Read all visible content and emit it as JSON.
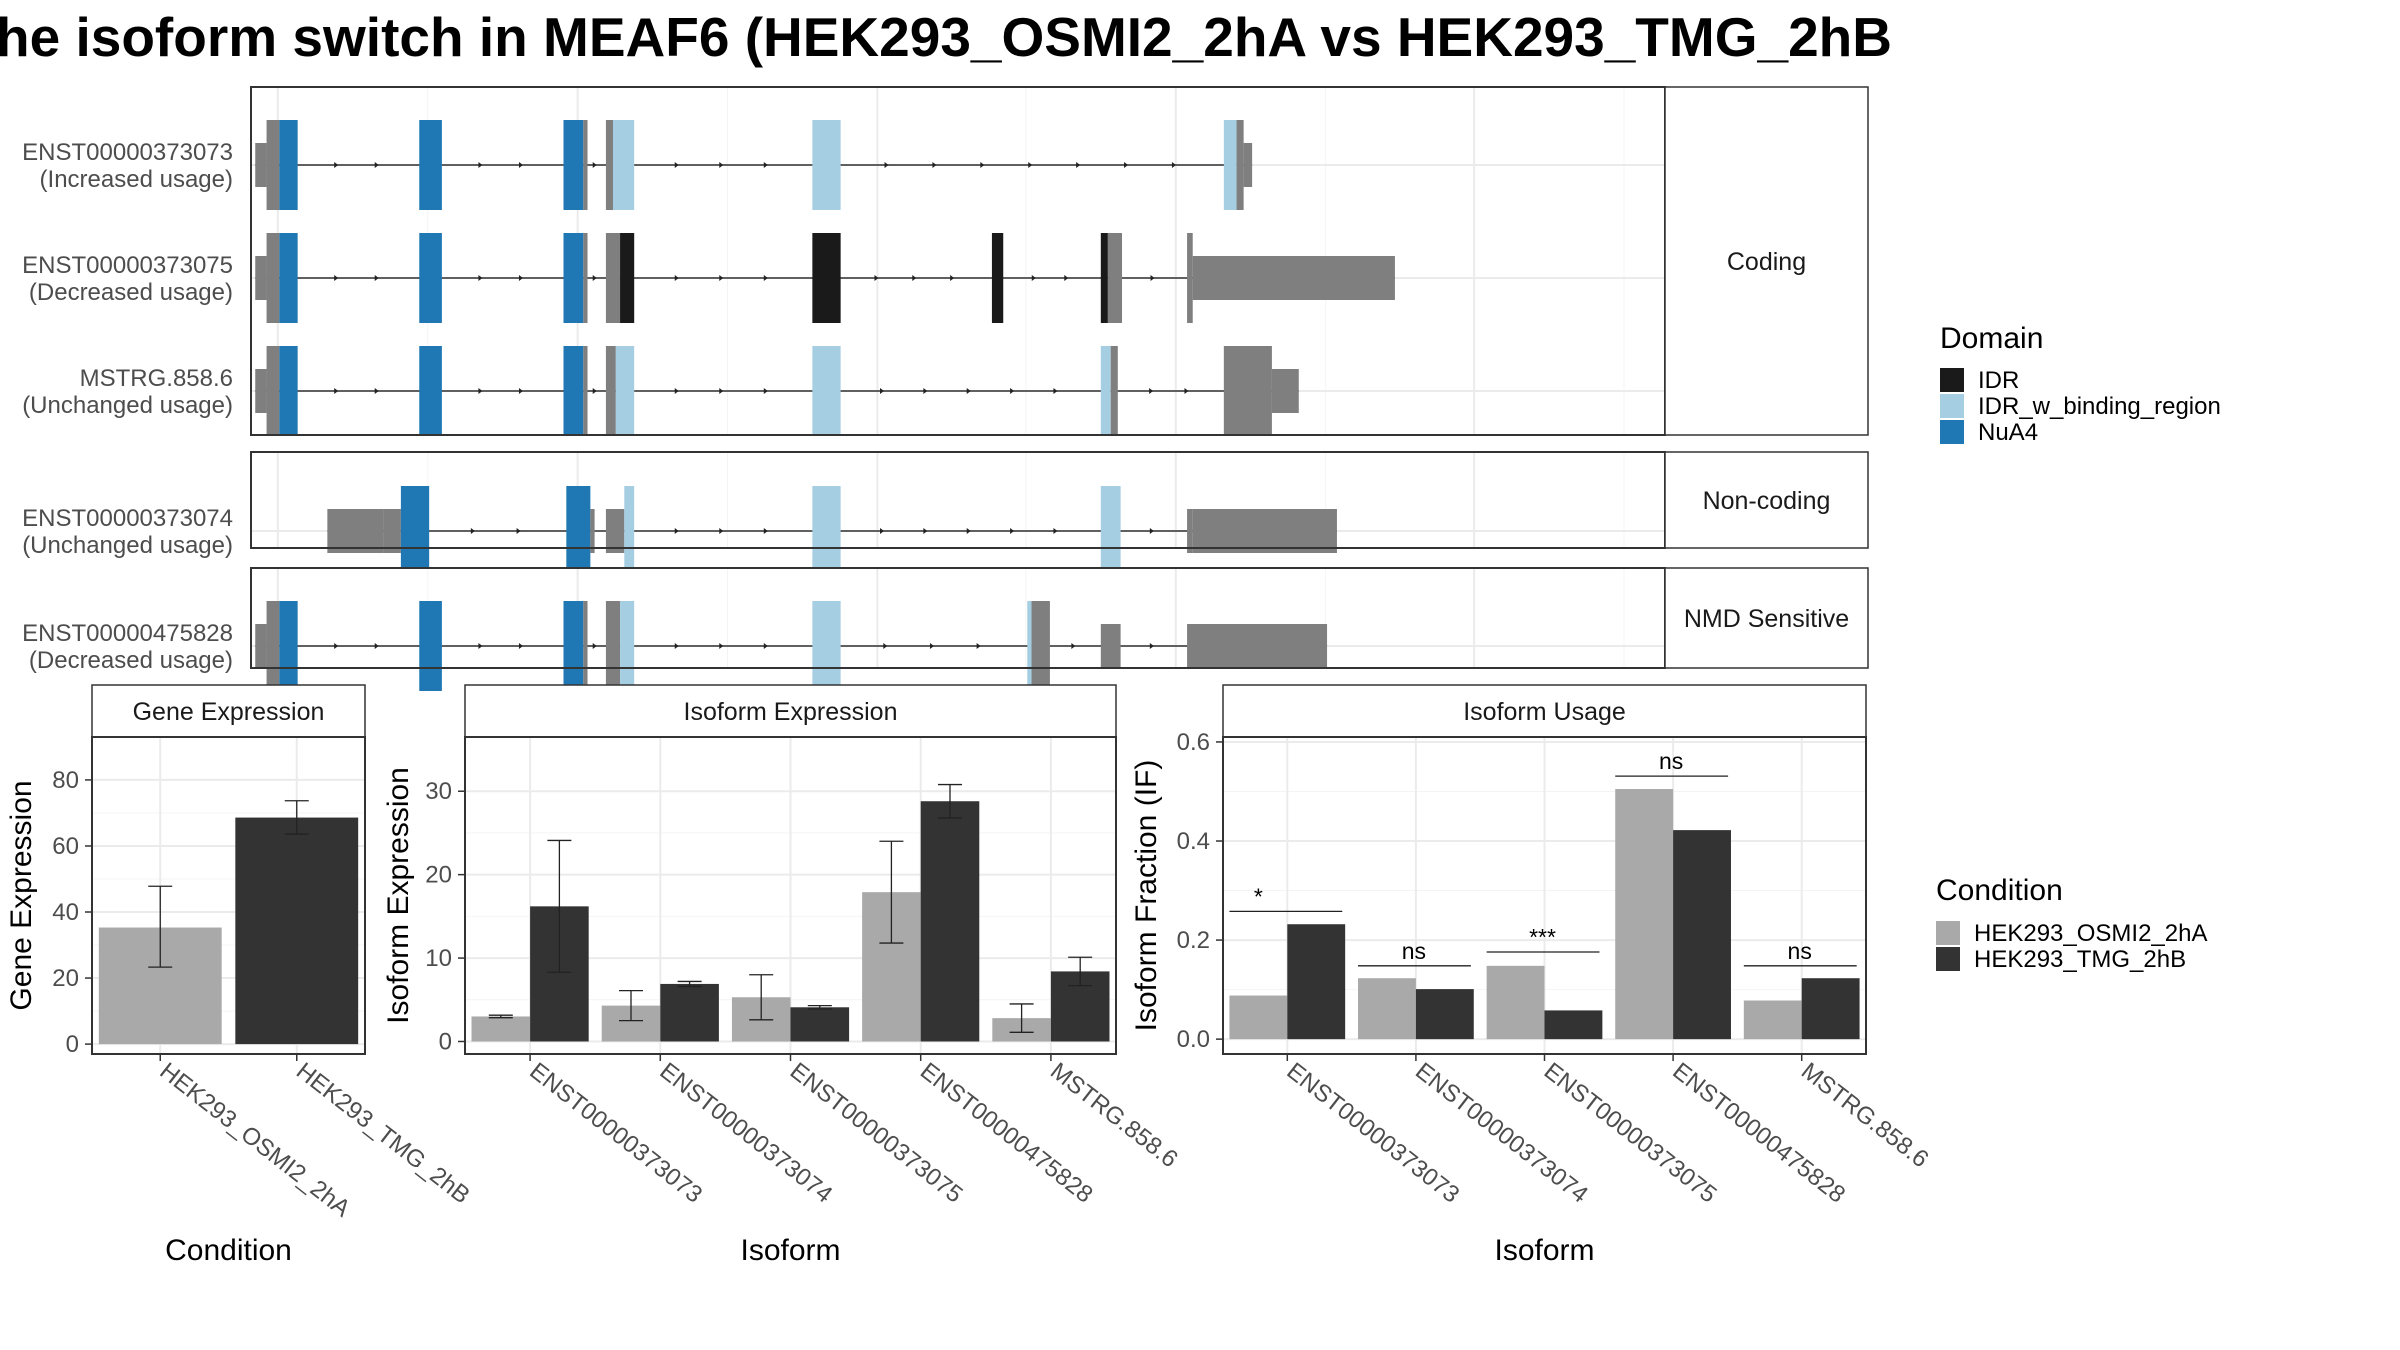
{
  "title": "he isoform switch in MEAF6 (HEK293_OSMI2_2hA vs HEK293_TMG_2hB",
  "colors": {
    "exon_grey": "#7f7f7f",
    "IDR": "#1a1a1a",
    "IDR_w_binding_region": "#a6cee3",
    "NuA4": "#1f78b4",
    "cond1": "#a9a9a9",
    "cond2": "#333333",
    "strip_fill": "#ffffff",
    "grid": "#ebebeb"
  },
  "domain_legend": {
    "title": "Domain",
    "items": [
      {
        "label": "IDR",
        "color": "#1a1a1a"
      },
      {
        "label": "IDR_w_binding_region",
        "color": "#a6cee3"
      },
      {
        "label": "NuA4",
        "color": "#1f78b4"
      }
    ]
  },
  "condition_legend": {
    "title": "Condition",
    "items": [
      {
        "label": "HEK293_OSMI2_2hA",
        "color": "#a9a9a9"
      },
      {
        "label": "HEK293_TMG_2hB",
        "color": "#333333"
      }
    ]
  },
  "structure_panels": [
    {
      "strip": "Coding",
      "transcripts": [
        {
          "id": "ENST00000373073",
          "usage": "(Increased usage)",
          "exons": [
            [
              0.3,
              1.1,
              "u"
            ],
            [
              1.1,
              2.0,
              "c"
            ],
            [
              2.0,
              3.3,
              "d:NuA4"
            ],
            [
              11.9,
              13.5,
              "d:NuA4"
            ],
            [
              22.1,
              23.5,
              "d:NuA4"
            ],
            [
              23.5,
              23.8,
              "c"
            ],
            [
              25.1,
              25.6,
              "c"
            ],
            [
              25.6,
              27.1,
              "d:IDR_w_binding_region"
            ],
            [
              39.7,
              41.7,
              "d:IDR_w_binding_region"
            ],
            [
              68.8,
              69.7,
              "d:IDR_w_binding_region"
            ],
            [
              69.7,
              70.2,
              "c"
            ],
            [
              70.2,
              70.8,
              "u"
            ]
          ]
        },
        {
          "id": "ENST00000373075",
          "usage": "(Decreased usage)",
          "exons": [
            [
              0.3,
              1.1,
              "u"
            ],
            [
              1.1,
              2.0,
              "c"
            ],
            [
              2.0,
              3.3,
              "d:NuA4"
            ],
            [
              11.9,
              13.5,
              "d:NuA4"
            ],
            [
              22.1,
              23.5,
              "d:NuA4"
            ],
            [
              23.5,
              23.8,
              "c"
            ],
            [
              25.1,
              26.1,
              "c"
            ],
            [
              26.1,
              27.1,
              "d:IDR"
            ],
            [
              39.7,
              41.7,
              "d:IDR"
            ],
            [
              52.4,
              53.2,
              "d:IDR"
            ],
            [
              60.1,
              60.6,
              "d:IDR"
            ],
            [
              60.6,
              61.6,
              "c"
            ],
            [
              66.2,
              66.6,
              "c"
            ],
            [
              66.6,
              80.9,
              "u"
            ]
          ]
        },
        {
          "id": "MSTRG.858.6",
          "usage": "(Unchanged usage)",
          "exons": [
            [
              0.3,
              1.1,
              "u"
            ],
            [
              1.1,
              2.0,
              "c"
            ],
            [
              2.0,
              3.3,
              "d:NuA4"
            ],
            [
              11.9,
              13.5,
              "d:NuA4"
            ],
            [
              22.1,
              23.5,
              "d:NuA4"
            ],
            [
              23.5,
              23.8,
              "c"
            ],
            [
              25.1,
              25.8,
              "c"
            ],
            [
              25.8,
              27.1,
              "d:IDR_w_binding_region"
            ],
            [
              39.7,
              41.7,
              "d:IDR_w_binding_region"
            ],
            [
              60.1,
              60.8,
              "d:IDR_w_binding_region"
            ],
            [
              60.8,
              61.3,
              "c"
            ],
            [
              68.8,
              72.2,
              "c"
            ],
            [
              72.2,
              74.1,
              "u"
            ]
          ]
        }
      ]
    },
    {
      "strip": "Non-coding",
      "transcripts": [
        {
          "id": "ENST00000373074",
          "usage": "(Unchanged usage)",
          "exons": [
            [
              5.4,
              9.4,
              "u"
            ],
            [
              9.4,
              10.6,
              "u"
            ],
            [
              10.6,
              12.6,
              "d:NuA4"
            ],
            [
              22.3,
              24.0,
              "d:NuA4"
            ],
            [
              24.0,
              24.3,
              "u"
            ],
            [
              25.1,
              26.4,
              "u"
            ],
            [
              26.4,
              27.1,
              "d:IDR_w_binding_region"
            ],
            [
              39.7,
              41.7,
              "d:IDR_w_binding_region"
            ],
            [
              60.1,
              61.5,
              "d:IDR_w_binding_region"
            ],
            [
              66.2,
              66.6,
              "u"
            ],
            [
              66.6,
              76.8,
              "u"
            ]
          ]
        }
      ]
    },
    {
      "strip": "NMD Sensitive",
      "transcripts": [
        {
          "id": "ENST00000475828",
          "usage": "(Decreased usage)",
          "exons": [
            [
              0.3,
              1.1,
              "u"
            ],
            [
              1.1,
              2.0,
              "c"
            ],
            [
              2.0,
              3.3,
              "d:NuA4"
            ],
            [
              11.9,
              13.5,
              "d:NuA4"
            ],
            [
              22.1,
              23.5,
              "d:NuA4"
            ],
            [
              23.5,
              23.8,
              "c"
            ],
            [
              25.1,
              26.1,
              "c"
            ],
            [
              26.1,
              27.1,
              "d:IDR_w_binding_region"
            ],
            [
              39.7,
              41.7,
              "d:IDR_w_binding_region"
            ],
            [
              54.9,
              55.2,
              "d:IDR_w_binding_region"
            ],
            [
              55.2,
              56.5,
              "c"
            ],
            [
              60.1,
              61.5,
              "u"
            ],
            [
              66.2,
              76.1,
              "u"
            ]
          ]
        }
      ]
    }
  ],
  "chart_data": [
    {
      "type": "bar",
      "title": "Gene Expression",
      "xlabel": "Condition",
      "ylabel": "Gene Expression",
      "ylim": [
        -3,
        93
      ],
      "yticks": [
        0,
        20,
        40,
        60,
        80
      ],
      "categories": [
        "HEK293_OSMI2_2hA",
        "HEK293_TMG_2hB"
      ],
      "values": [
        35.3,
        68.6
      ],
      "errors": [
        [
          23.3,
          47.8
        ],
        [
          63.6,
          73.7
        ]
      ]
    },
    {
      "type": "bar",
      "title": "Isoform Expression",
      "xlabel": "Isoform",
      "ylabel": "Isoform Expression",
      "ylim": [
        -1.5,
        36.5
      ],
      "yticks": [
        0,
        10,
        20,
        30
      ],
      "categories": [
        "ENST00000373073",
        "ENST00000373074",
        "ENST00000373075",
        "ENST00000475828",
        "MSTRG.858.6"
      ],
      "series": [
        {
          "name": "HEK293_OSMI2_2hA",
          "values": [
            3.0,
            4.3,
            5.3,
            17.9,
            2.8
          ],
          "errors": [
            [
              2.85,
              3.15
            ],
            [
              2.5,
              6.1
            ],
            [
              2.6,
              8.0
            ],
            [
              11.8,
              24.0
            ],
            [
              1.1,
              4.5
            ]
          ]
        },
        {
          "name": "HEK293_TMG_2hB",
          "values": [
            16.2,
            6.9,
            4.1,
            28.8,
            8.4
          ],
          "errors": [
            [
              8.3,
              24.1
            ],
            [
              6.6,
              7.2
            ],
            [
              3.9,
              4.3
            ],
            [
              26.8,
              30.8
            ],
            [
              6.7,
              10.1
            ]
          ]
        }
      ]
    },
    {
      "type": "bar",
      "title": "Isoform Usage",
      "xlabel": "Isoform",
      "ylabel": "Isoform Fraction (IF)",
      "ylim": [
        -0.03,
        0.61
      ],
      "yticks": [
        0.0,
        0.2,
        0.4,
        0.6
      ],
      "yticklabels": [
        "0.0",
        "0.2",
        "0.4",
        "0.6"
      ],
      "categories": [
        "ENST00000373073",
        "ENST00000373074",
        "ENST00000373075",
        "ENST00000475828",
        "MSTRG.858.6"
      ],
      "series": [
        {
          "name": "HEK293_OSMI2_2hA",
          "values": [
            0.088,
            0.123,
            0.148,
            0.505,
            0.078
          ]
        },
        {
          "name": "HEK293_TMG_2hB",
          "values": [
            0.232,
            0.101,
            0.058,
            0.422,
            0.123
          ]
        }
      ],
      "significance": [
        {
          "label": "*",
          "y": 0.258
        },
        {
          "label": "ns",
          "y": 0.148
        },
        {
          "label": "***",
          "y": 0.176
        },
        {
          "label": "ns",
          "y": 0.531
        },
        {
          "label": "ns",
          "y": 0.148
        }
      ]
    }
  ]
}
